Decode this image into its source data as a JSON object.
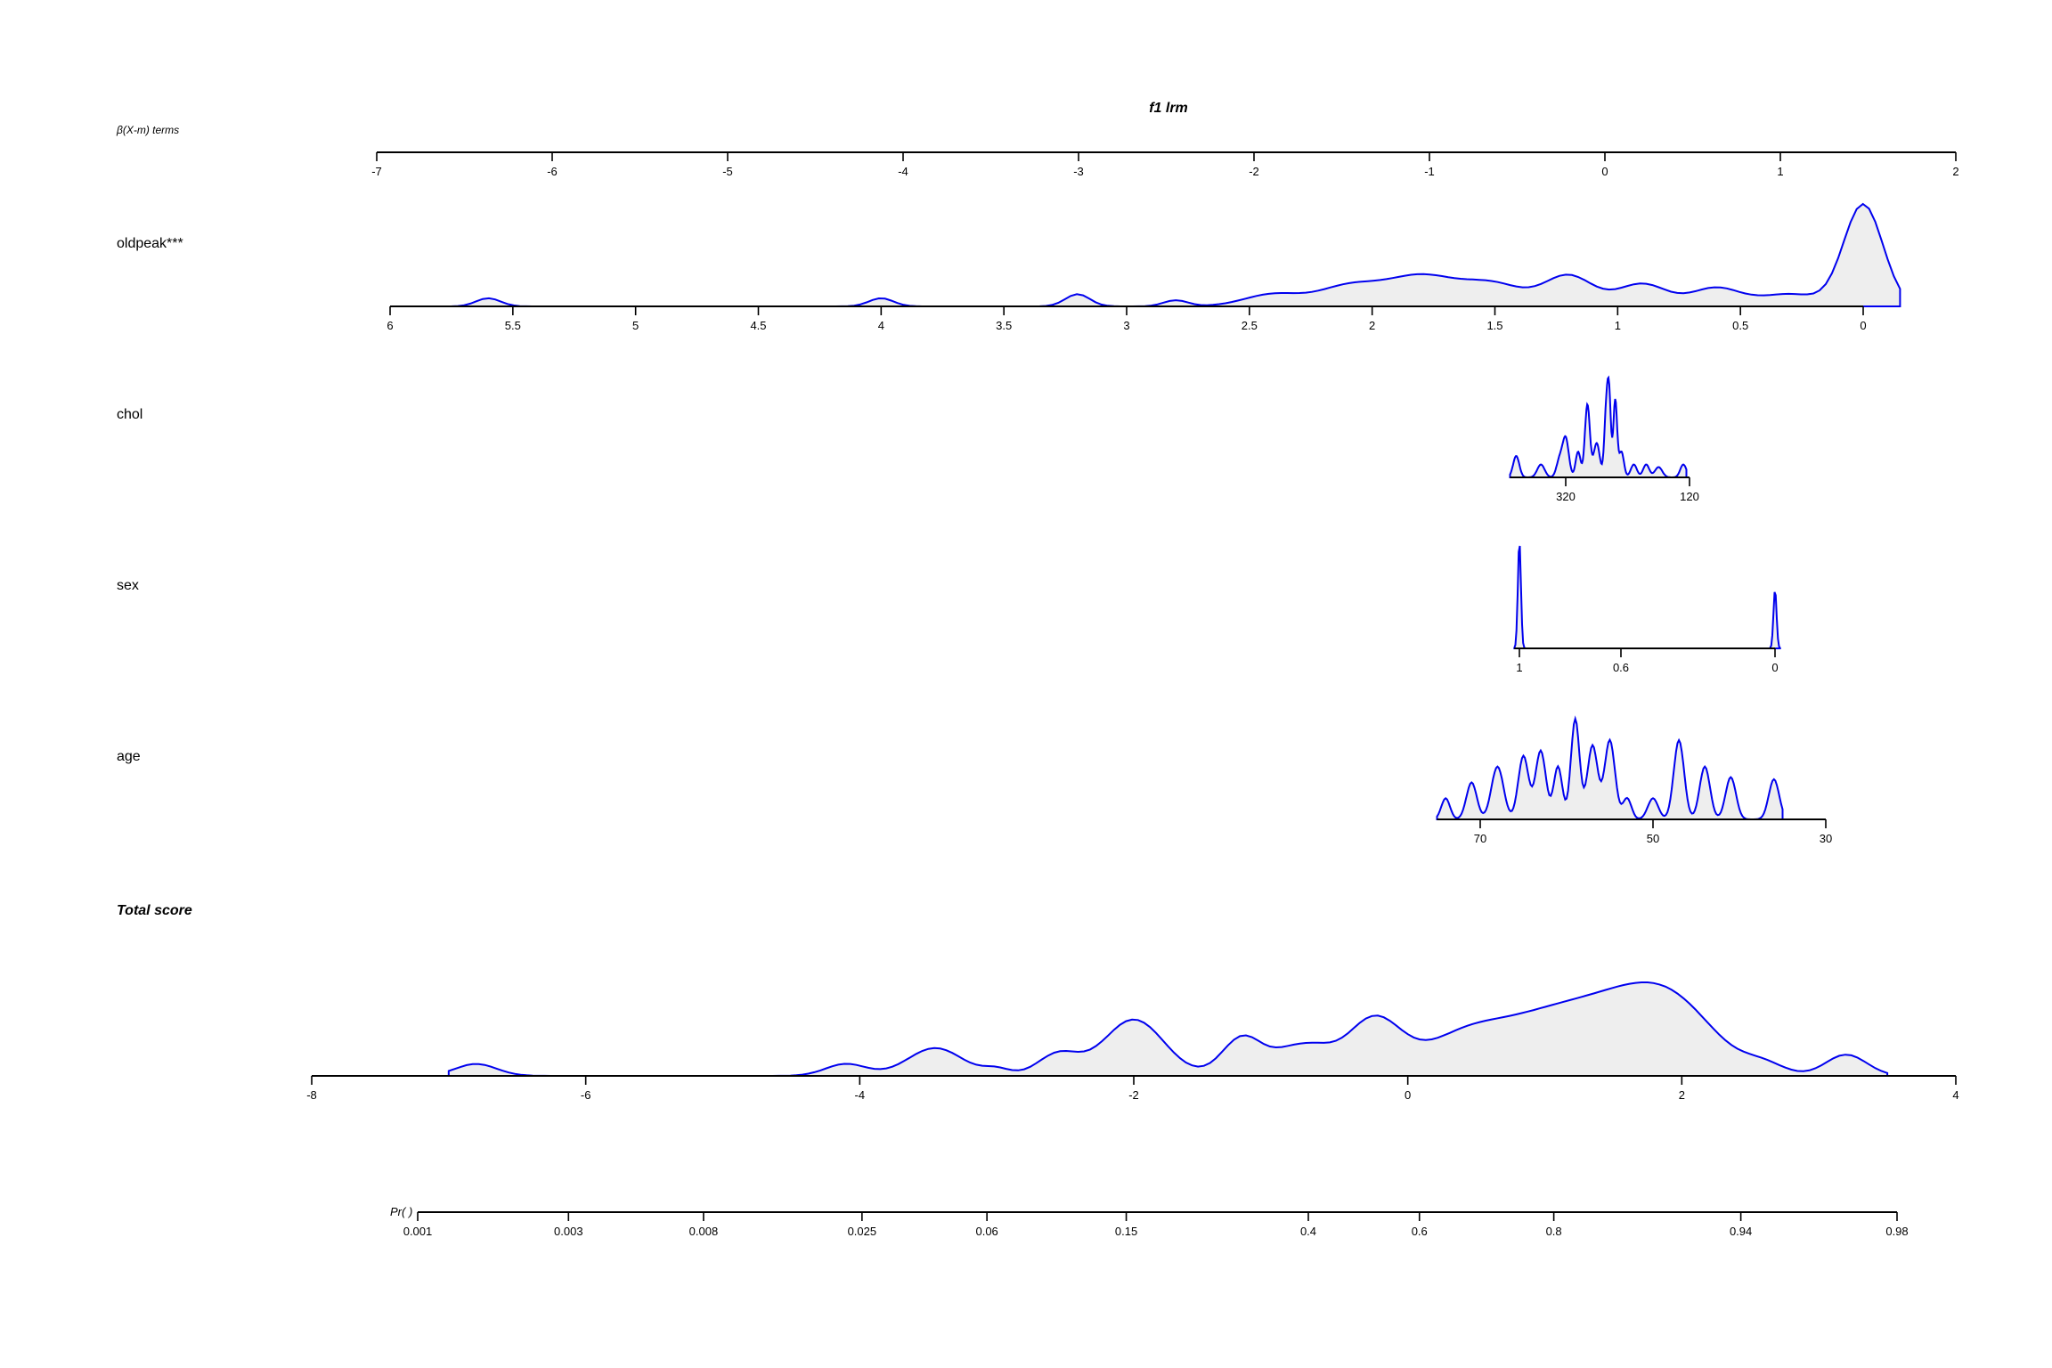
{
  "chart_data": {
    "type": "nomogram",
    "title": "f1 lrm",
    "subtitle": "β(X-m) terms",
    "rows": [
      {
        "label": "oldpeak***",
        "ticks": [
          "6",
          "5.5",
          "5",
          "4.5",
          "4",
          "3.5",
          "3",
          "2.5",
          "2",
          "1.5",
          "1",
          "0.5",
          "0"
        ],
        "range": [
          6,
          0
        ],
        "bumps": [
          [
            5.6,
            0.05,
            0.08
          ],
          [
            4.0,
            0.05,
            0.08
          ],
          [
            3.2,
            0.05,
            0.12
          ],
          [
            2.8,
            0.05,
            0.06
          ],
          [
            2.4,
            0.12,
            0.12
          ],
          [
            2.1,
            0.12,
            0.18
          ],
          [
            1.8,
            0.15,
            0.3
          ],
          [
            1.5,
            0.12,
            0.2
          ],
          [
            1.2,
            0.1,
            0.3
          ],
          [
            0.9,
            0.1,
            0.22
          ],
          [
            0.6,
            0.1,
            0.18
          ],
          [
            0.3,
            0.12,
            0.12
          ],
          [
            0.0,
            0.08,
            1.0
          ]
        ],
        "density_range": [
          5.9,
          -0.15
        ]
      },
      {
        "label": "chol",
        "ticks": [
          "320",
          "120"
        ],
        "range": [
          320,
          120
        ],
        "bumps": [
          [
            400,
            5,
            0.25
          ],
          [
            360,
            6,
            0.15
          ],
          [
            330,
            5,
            0.2
          ],
          [
            320,
            5,
            0.45
          ],
          [
            300,
            4,
            0.3
          ],
          [
            285,
            4,
            0.85
          ],
          [
            270,
            5,
            0.4
          ],
          [
            255,
            3,
            0.65
          ],
          [
            250,
            3,
            0.95
          ],
          [
            240,
            3,
            0.9
          ],
          [
            230,
            4,
            0.3
          ],
          [
            210,
            5,
            0.15
          ],
          [
            190,
            5,
            0.15
          ],
          [
            170,
            6,
            0.12
          ],
          [
            130,
            5,
            0.15
          ]
        ],
        "density_range": [
          410,
          125
        ]
      },
      {
        "label": "sex",
        "ticks": [
          "1",
          "0.6",
          "0"
        ],
        "range": [
          1,
          0
        ],
        "bumps": [
          [
            1.0,
            0.006,
            1.0
          ],
          [
            0.0,
            0.006,
            0.55
          ]
        ],
        "density_range": [
          1.02,
          -0.02
        ]
      },
      {
        "label": "age",
        "ticks": [
          "70",
          "50",
          "30"
        ],
        "range": [
          70,
          30
        ],
        "bumps": [
          [
            74,
            0.5,
            0.2
          ],
          [
            71,
            0.6,
            0.35
          ],
          [
            68,
            0.7,
            0.5
          ],
          [
            65,
            0.6,
            0.6
          ],
          [
            63,
            0.6,
            0.65
          ],
          [
            61,
            0.5,
            0.5
          ],
          [
            59,
            0.5,
            0.95
          ],
          [
            57,
            0.6,
            0.7
          ],
          [
            55,
            0.6,
            0.75
          ],
          [
            53,
            0.5,
            0.2
          ],
          [
            50,
            0.6,
            0.2
          ],
          [
            47,
            0.6,
            0.75
          ],
          [
            44,
            0.6,
            0.5
          ],
          [
            41,
            0.6,
            0.4
          ],
          [
            36,
            0.6,
            0.38
          ]
        ],
        "density_range": [
          75,
          35
        ]
      }
    ],
    "top_axis": {
      "ticks": [
        "-7",
        "-6",
        "-5",
        "-4",
        "-3",
        "-2",
        "-1",
        "0",
        "1",
        "2"
      ],
      "range": [
        -7,
        2
      ]
    },
    "total_score": {
      "label": "Total score",
      "ticks": [
        "-8",
        "-6",
        "-4",
        "-2",
        "0",
        "2",
        "4"
      ],
      "range": [
        -8,
        4
      ],
      "bumps": [
        [
          -6.8,
          0.15,
          0.18
        ],
        [
          -4.1,
          0.15,
          0.18
        ],
        [
          -3.45,
          0.2,
          0.42
        ],
        [
          -3.0,
          0.1,
          0.1
        ],
        [
          -2.55,
          0.15,
          0.33
        ],
        [
          -2.0,
          0.22,
          0.85
        ],
        [
          -1.2,
          0.15,
          0.6
        ],
        [
          -0.9,
          0.12,
          0.2
        ],
        [
          -0.7,
          0.15,
          0.38
        ],
        [
          -0.25,
          0.2,
          0.85
        ],
        [
          0.4,
          0.3,
          0.55
        ],
        [
          1.0,
          0.35,
          0.75
        ],
        [
          1.6,
          0.35,
          0.92
        ],
        [
          2.0,
          0.3,
          0.7
        ],
        [
          2.6,
          0.15,
          0.15
        ],
        [
          3.2,
          0.15,
          0.32
        ]
      ],
      "density_range": [
        -7.0,
        3.5
      ]
    },
    "probability": {
      "label": "Pr( )",
      "ticks": [
        "0.001",
        "0.003",
        "0.008",
        "0.025",
        "0.06",
        "0.15",
        "0.4",
        "0.6",
        "0.8",
        "0.94",
        "0.98"
      ],
      "values": [
        0.001,
        0.003,
        0.008,
        0.025,
        0.06,
        0.15,
        0.4,
        0.6,
        0.8,
        0.94,
        0.98
      ]
    },
    "line_color": "#0000ee",
    "fill_color": "#eeeeee"
  }
}
